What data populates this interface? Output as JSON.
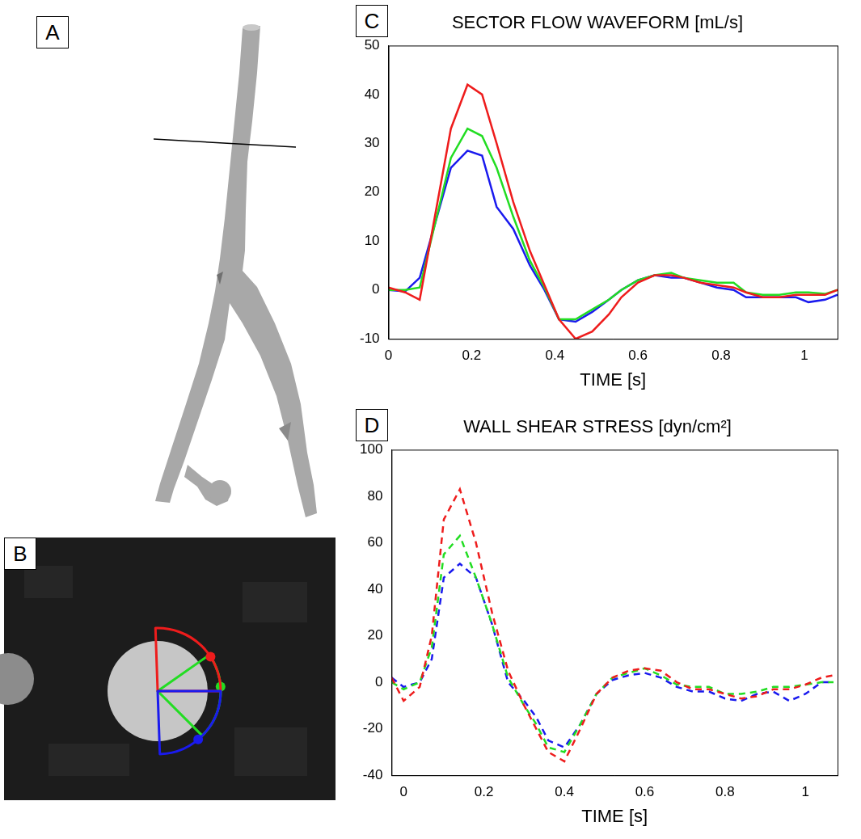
{
  "panels": [
    {
      "panel": "A"
    },
    {
      "panel": "B"
    }
  ],
  "chart_data": [
    {
      "panel": "C",
      "type": "line",
      "title": "SECTOR FLOW WAVEFORM [mL/s]",
      "xlabel": "TIME [s]",
      "x": [
        0,
        0.04,
        0.075,
        0.15,
        0.19,
        0.225,
        0.26,
        0.3,
        0.34,
        0.375,
        0.41,
        0.45,
        0.49,
        0.53,
        0.56,
        0.6,
        0.64,
        0.68,
        0.71,
        0.75,
        0.79,
        0.83,
        0.86,
        0.9,
        0.94,
        0.98,
        1.01,
        1.05,
        1.08
      ],
      "series": [
        {
          "color": "#ee1c1c",
          "line_style": "solid",
          "values": [
            0.5,
            -0.5,
            -2,
            33,
            42,
            40,
            30,
            18,
            8,
            1,
            -6,
            -10,
            -8.5,
            -5,
            -1.5,
            1.5,
            3,
            3,
            2.5,
            1.5,
            1,
            0.5,
            -0.5,
            -1.5,
            -1.5,
            -1,
            -1,
            -1,
            0
          ]
        },
        {
          "color": "#22dd22",
          "line_style": "solid",
          "values": [
            0,
            0,
            0.5,
            27,
            33,
            31.5,
            25,
            15,
            6,
            0.5,
            -6,
            -6,
            -4,
            -2,
            0,
            2,
            3,
            3.5,
            2.5,
            2,
            1.5,
            1.5,
            -0.5,
            -1,
            -1,
            -0.5,
            -0.5,
            -0.8,
            0
          ]
        },
        {
          "color": "#1a1aee",
          "line_style": "solid",
          "values": [
            0,
            -0.3,
            2.5,
            25,
            28.5,
            27.5,
            17,
            12.5,
            5,
            0,
            -6,
            -6.5,
            -4.5,
            -2,
            0,
            2,
            3,
            2.5,
            2.5,
            1.5,
            0.5,
            0,
            -1.5,
            -1.5,
            -1.5,
            -1.5,
            -2.5,
            -2,
            -1
          ]
        }
      ],
      "xlim": [
        0,
        1.08
      ],
      "xticks": [
        0,
        0.2,
        0.4,
        0.6,
        0.8,
        1
      ],
      "ylim": [
        -10,
        50
      ],
      "yticks": [
        -10,
        0,
        10,
        20,
        30,
        40,
        50
      ],
      "grid": false
    },
    {
      "panel": "D",
      "type": "line",
      "title": "WALL SHEAR STRESS [dyn/cm²]",
      "xlabel": "TIME [s]",
      "x": [
        -0.03,
        0,
        0.04,
        0.07,
        0.1,
        0.14,
        0.18,
        0.22,
        0.26,
        0.3,
        0.33,
        0.36,
        0.4,
        0.44,
        0.48,
        0.52,
        0.56,
        0.6,
        0.64,
        0.68,
        0.72,
        0.76,
        0.8,
        0.84,
        0.88,
        0.92,
        0.96,
        1,
        1.04,
        1.07
      ],
      "series": [
        {
          "color": "#ee1c1c",
          "line_style": "dashed",
          "values": [
            2,
            -8,
            -2,
            20,
            70,
            83,
            60,
            30,
            5,
            -10,
            -20,
            -30,
            -34,
            -20,
            -5,
            2,
            5,
            6,
            5,
            0,
            -3,
            -3,
            -5,
            -7,
            -6,
            -3,
            -3,
            -1,
            2,
            3
          ]
        },
        {
          "color": "#22dd22",
          "line_style": "dashed",
          "values": [
            0,
            -3,
            0,
            15,
            55,
            63,
            45,
            25,
            2,
            -10,
            -18,
            -28,
            -30,
            -18,
            -5,
            2,
            4,
            6,
            3,
            -1,
            -2,
            -2,
            -5,
            -5,
            -4,
            -2,
            -2,
            -1,
            0,
            0
          ]
        },
        {
          "color": "#1a1aee",
          "line_style": "dashed",
          "values": [
            2,
            -2,
            0,
            10,
            45,
            51,
            45,
            25,
            0,
            -8,
            -15,
            -25,
            -28,
            -18,
            -5,
            1,
            3,
            4,
            2,
            -2,
            -4,
            -4,
            -7,
            -8,
            -5,
            -4,
            -8,
            -5,
            0,
            0
          ]
        }
      ],
      "xlim": [
        -0.03,
        1.08
      ],
      "xticks": [
        0,
        0.2,
        0.4,
        0.6,
        0.8,
        1
      ],
      "ylim": [
        -40,
        100
      ],
      "yticks": [
        -40,
        -20,
        0,
        20,
        40,
        60,
        80,
        100
      ],
      "grid": false
    }
  ]
}
